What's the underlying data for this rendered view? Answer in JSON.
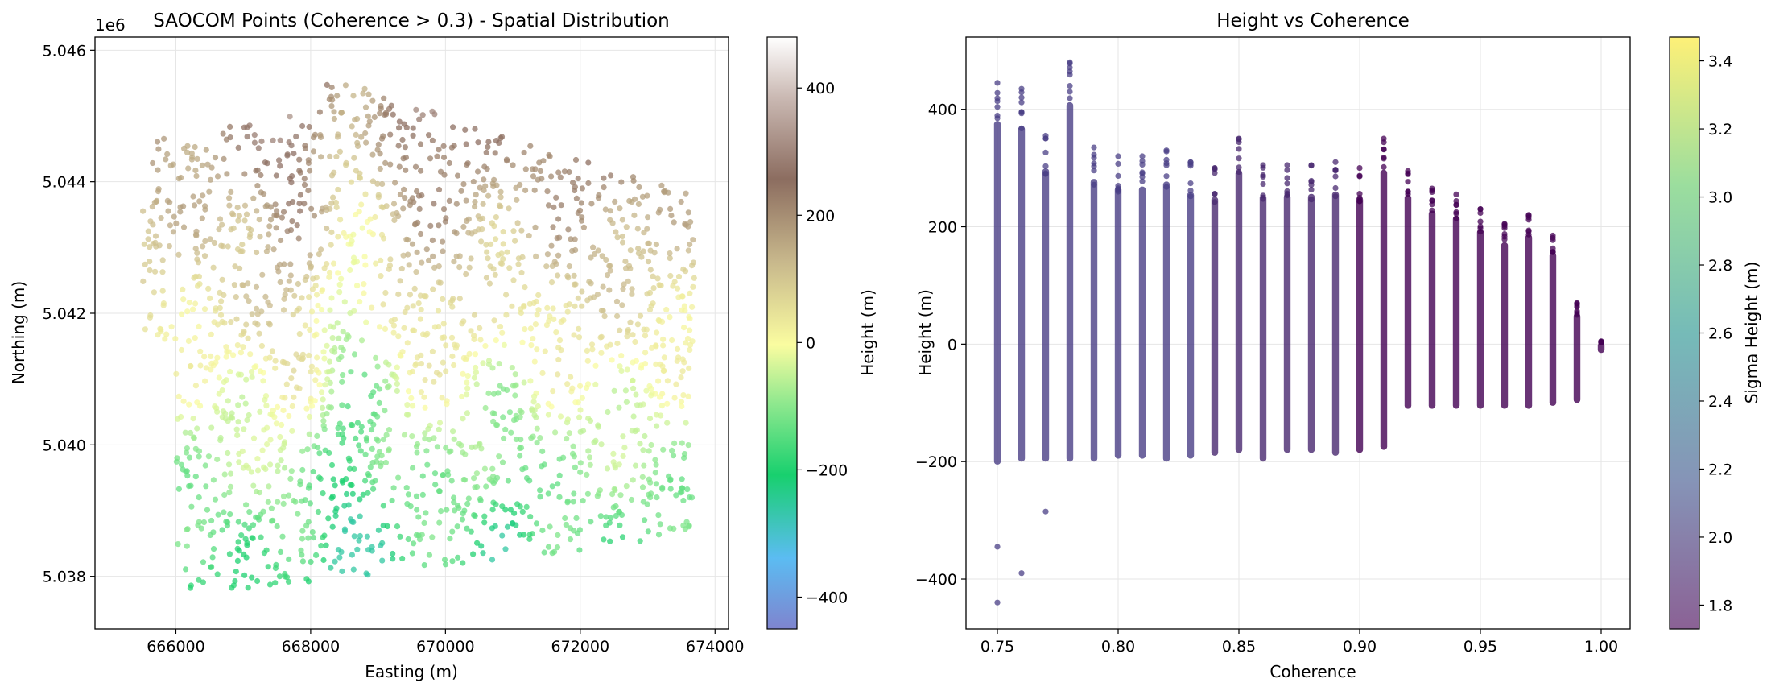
{
  "chart_data": [
    {
      "type": "scatter",
      "title": "SAOCOM Points (Coherence > 0.3) - Spatial Distribution",
      "xlabel": "Easting (m)",
      "ylabel": "Northing (m)",
      "y_offset_label": "1e6",
      "xlim": [
        664800,
        674200
      ],
      "ylim": [
        5037200,
        5046200
      ],
      "xticks": [
        666000,
        668000,
        670000,
        672000,
        674000
      ],
      "xtick_labels": [
        "666000",
        "668000",
        "670000",
        "672000",
        "674000"
      ],
      "yticks": [
        5038000,
        5040000,
        5042000,
        5044000,
        5046000
      ],
      "ytick_labels": [
        "5.038",
        "5.040",
        "5.042",
        "5.044",
        "5.046"
      ],
      "grid": true,
      "colorbar": {
        "label": "Height (m)",
        "colormap": "terrain",
        "range": [
          -450,
          480
        ],
        "ticks": [
          -400,
          -200,
          0,
          200,
          400
        ],
        "tick_labels": [
          "−400",
          "−200",
          "0",
          "200",
          "400"
        ]
      },
      "data_extent": {
        "easting": [
          665300,
          673700
        ],
        "northing": [
          5037600,
          5045600
        ],
        "height": [
          -450,
          480
        ]
      }
    },
    {
      "type": "scatter",
      "title": "Height vs Coherence",
      "xlabel": "Coherence",
      "ylabel": "Height (m)",
      "xlim": [
        0.737,
        1.012
      ],
      "ylim": [
        -485,
        523
      ],
      "xticks": [
        0.75,
        0.8,
        0.85,
        0.9,
        0.95,
        1.0
      ],
      "xtick_labels": [
        "0.75",
        "0.80",
        "0.85",
        "0.90",
        "0.95",
        "1.00"
      ],
      "yticks": [
        -400,
        -200,
        0,
        200,
        400
      ],
      "ytick_labels": [
        "−400",
        "−200",
        "0",
        "200",
        "400"
      ],
      "grid": true,
      "colorbar": {
        "label": "Sigma Height (m)",
        "colormap": "viridis",
        "range": [
          1.73,
          3.47
        ],
        "ticks": [
          1.8,
          2.0,
          2.2,
          2.4,
          2.6,
          2.8,
          3.0,
          3.2,
          3.4
        ],
        "tick_labels": [
          "1.8",
          "2.0",
          "2.2",
          "2.4",
          "2.6",
          "2.8",
          "3.0",
          "3.2",
          "3.4"
        ]
      },
      "coherence": [
        0.75,
        0.76,
        0.77,
        0.78,
        0.79,
        0.8,
        0.81,
        0.82,
        0.83,
        0.84,
        0.85,
        0.86,
        0.87,
        0.88,
        0.89,
        0.9,
        0.91,
        0.92,
        0.93,
        0.94,
        0.95,
        0.96,
        0.97,
        0.98,
        0.99,
        1.0
      ],
      "height_min": [
        -205,
        -200,
        -200,
        -200,
        -200,
        -195,
        -195,
        -200,
        -195,
        -190,
        -185,
        -200,
        -185,
        -185,
        -190,
        -185,
        -180,
        -110,
        -110,
        -110,
        -110,
        -110,
        -110,
        -105,
        -100,
        -15
      ],
      "height_max": [
        445,
        435,
        355,
        480,
        335,
        320,
        320,
        330,
        310,
        300,
        350,
        305,
        305,
        305,
        310,
        300,
        350,
        295,
        265,
        255,
        230,
        205,
        220,
        185,
        70,
        5
      ],
      "outliers": [
        {
          "coherence": 0.75,
          "height": -345
        },
        {
          "coherence": 0.75,
          "height": -440
        },
        {
          "coherence": 0.76,
          "height": -390
        },
        {
          "coherence": 0.77,
          "height": -285
        },
        {
          "coherence": 0.78,
          "height": 478
        },
        {
          "coherence": 0.76,
          "height": 395
        }
      ]
    }
  ]
}
